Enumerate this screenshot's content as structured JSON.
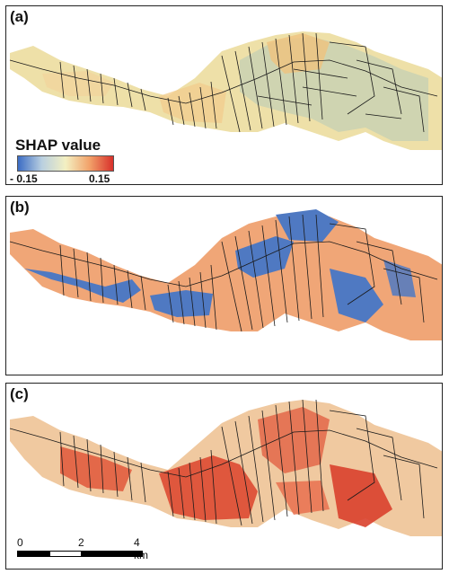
{
  "panels": [
    {
      "label": "(a)"
    },
    {
      "label": "(b)"
    },
    {
      "label": "(c)"
    }
  ],
  "legend": {
    "title": "SHAP value",
    "min_label": "- 0.15",
    "max_label": "0.15",
    "colors": [
      "#3b6cc4",
      "#b9cfe0",
      "#f3f0c2",
      "#f2a26a",
      "#d8302a"
    ]
  },
  "scalebar": {
    "ticks": [
      "0",
      "2",
      "4 km"
    ]
  },
  "colors": {
    "panel_a_fill": "#e9dca2",
    "panel_a_green": "#c7d0b1",
    "panel_b_orange": "#f0a677",
    "panel_b_blue": "#4f79c2",
    "panel_c_red": "#dd4a32",
    "panel_c_pale": "#f0c9a0",
    "parcel_lines": "#1a1a1a"
  }
}
